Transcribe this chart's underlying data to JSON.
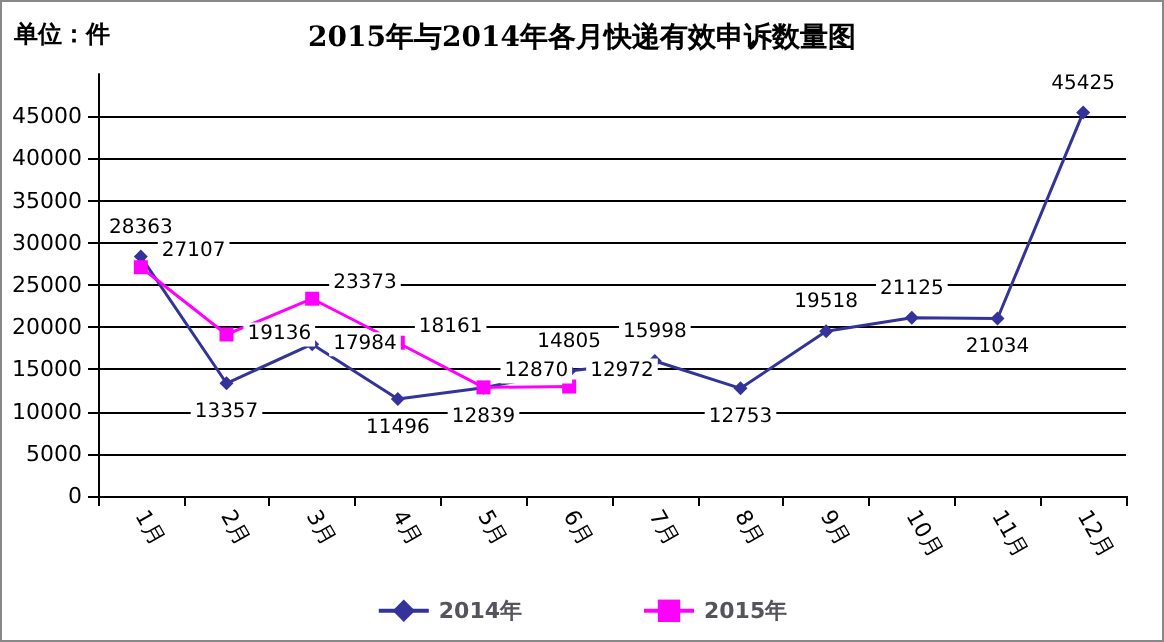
{
  "chart_data": {
    "type": "line",
    "title": "2015年与2014年各月快递有效申诉数量图",
    "annotations": [
      "单位：件"
    ],
    "categories": [
      "1月",
      "2月",
      "3月",
      "4月",
      "5月",
      "6月",
      "7月",
      "8月",
      "9月",
      "10月",
      "11月",
      "12月"
    ],
    "series": [
      {
        "name": "2014年",
        "color": "#333399",
        "marker": "diamond",
        "values": [
          28363,
          13357,
          17984,
          11496,
          12839,
          14805,
          15998,
          12753,
          19518,
          21125,
          21034,
          45425
        ]
      },
      {
        "name": "2015年",
        "color": "#ff00ff",
        "marker": "square",
        "values": [
          27107,
          19136,
          23373,
          18161,
          12870,
          12972,
          null,
          null,
          null,
          null,
          null,
          null
        ]
      }
    ],
    "ylim": [
      0,
      50000
    ],
    "yticks": [
      0,
      5000,
      10000,
      15000,
      20000,
      25000,
      30000,
      35000,
      40000,
      45000
    ],
    "grid": "y",
    "legend": "bottom",
    "data_labels": true
  }
}
